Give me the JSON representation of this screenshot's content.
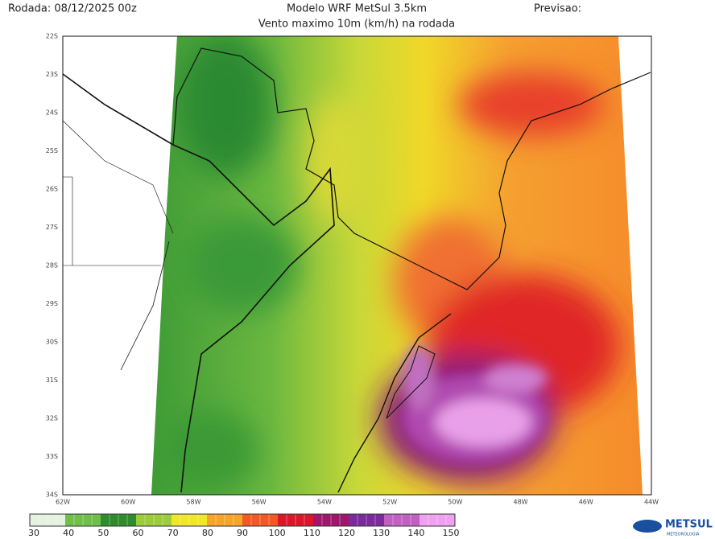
{
  "header": {
    "run": "Rodada: 08/12/2025 00z",
    "model": "Modelo WRF MetSul 3.5km",
    "forecast": "Previsao:",
    "subtitle": "Vento maximo 10m (km/h) na rodada"
  },
  "axes": {
    "lat": [
      "22S",
      "23S",
      "24S",
      "25S",
      "26S",
      "27S",
      "28S",
      "29S",
      "30S",
      "31S",
      "32S",
      "33S",
      "34S"
    ],
    "lon": [
      "62W",
      "60W",
      "58W",
      "56W",
      "54W",
      "52W",
      "50W",
      "48W",
      "46W",
      "44W"
    ]
  },
  "colorbar": {
    "labels": [
      30,
      40,
      50,
      60,
      70,
      80,
      90,
      100,
      110,
      120,
      130,
      140,
      150
    ],
    "colors": [
      "#e6f2e0",
      "#6fbf4a",
      "#2e8b2e",
      "#9ccc3a",
      "#f2e62a",
      "#f7a52a",
      "#f25a24",
      "#d8182a",
      "#a0166a",
      "#7a2a9a",
      "#c060c0",
      "#f0a0f0"
    ]
  },
  "logo": {
    "name": "METSUL",
    "tagline": "METEOROLOGIA"
  }
}
